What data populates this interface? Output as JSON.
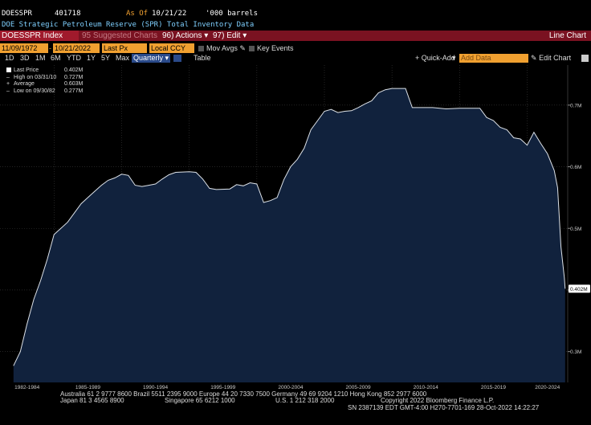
{
  "header": {
    "ticker": "DOESSPR",
    "last_value": "401718",
    "as_of_label": "As Of",
    "as_of_date": "10/21/22",
    "units": "'000 barrels",
    "description": "DOE Strategic Petroleum Reserve (SPR) Total Inventory Data"
  },
  "toolbar": {
    "security": "DOESSPR Index",
    "suggested": "95 Suggested Charts",
    "actions": "96) Actions",
    "edit": "97) Edit",
    "view": "Line Chart"
  },
  "controls": {
    "start_date": "11/09/1972",
    "end_date": "10/21/2022",
    "field": "Last Px",
    "currency": "Local CCY",
    "mov_avgs": "Mov Avgs",
    "key_events": "Key Events",
    "ranges": [
      "1D",
      "3D",
      "1M",
      "6M",
      "YTD",
      "1Y",
      "5Y",
      "Max"
    ],
    "frequency": "Quarterly",
    "table": "Table",
    "quick_add": "+ Quick-Add",
    "add_data_placeholder": "Add Data",
    "edit_chart": "Edit Chart"
  },
  "legend": [
    {
      "label": "Last Price",
      "value": "0.402M"
    },
    {
      "label": "High on 03/31/10",
      "value": "0.727M"
    },
    {
      "label": "Average",
      "value": "0.603M"
    },
    {
      "label": "Low on 09/30/82",
      "value": "0.277M"
    }
  ],
  "chart_data": {
    "type": "area",
    "series": [
      {
        "values": [
          [
            1982.0,
            0.277
          ],
          [
            1982.5,
            0.3
          ],
          [
            1983.0,
            0.345
          ],
          [
            1983.5,
            0.385
          ],
          [
            1984.0,
            0.415
          ],
          [
            1984.5,
            0.45
          ],
          [
            1985.0,
            0.49
          ],
          [
            1985.5,
            0.5
          ],
          [
            1986.0,
            0.51
          ],
          [
            1986.5,
            0.525
          ],
          [
            1987.0,
            0.54
          ],
          [
            1987.5,
            0.55
          ],
          [
            1988.0,
            0.56
          ],
          [
            1988.5,
            0.57
          ],
          [
            1989.0,
            0.578
          ],
          [
            1989.5,
            0.582
          ],
          [
            1990.0,
            0.588
          ],
          [
            1990.5,
            0.586
          ],
          [
            1991.0,
            0.57
          ],
          [
            1991.5,
            0.568
          ],
          [
            1992.0,
            0.57
          ],
          [
            1992.5,
            0.572
          ],
          [
            1993.0,
            0.58
          ],
          [
            1993.5,
            0.587
          ],
          [
            1994.0,
            0.591
          ],
          [
            1995.0,
            0.592
          ],
          [
            1995.5,
            0.591
          ],
          [
            1996.0,
            0.58
          ],
          [
            1996.5,
            0.565
          ],
          [
            1997.0,
            0.563
          ],
          [
            1998.0,
            0.564
          ],
          [
            1998.5,
            0.571
          ],
          [
            1999.0,
            0.569
          ],
          [
            1999.5,
            0.574
          ],
          [
            2000.0,
            0.572
          ],
          [
            2000.5,
            0.542
          ],
          [
            2001.0,
            0.545
          ],
          [
            2001.5,
            0.55
          ],
          [
            2002.0,
            0.579
          ],
          [
            2002.5,
            0.6
          ],
          [
            2003.0,
            0.612
          ],
          [
            2003.5,
            0.63
          ],
          [
            2004.0,
            0.66
          ],
          [
            2004.5,
            0.675
          ],
          [
            2005.0,
            0.69
          ],
          [
            2005.5,
            0.693
          ],
          [
            2006.0,
            0.688
          ],
          [
            2006.5,
            0.69
          ],
          [
            2007.0,
            0.691
          ],
          [
            2007.5,
            0.696
          ],
          [
            2008.0,
            0.702
          ],
          [
            2008.5,
            0.707
          ],
          [
            2009.0,
            0.72
          ],
          [
            2009.5,
            0.725
          ],
          [
            2010.0,
            0.727
          ],
          [
            2011.0,
            0.727
          ],
          [
            2011.5,
            0.696
          ],
          [
            2012.0,
            0.696
          ],
          [
            2013.0,
            0.696
          ],
          [
            2014.0,
            0.694
          ],
          [
            2015.0,
            0.695
          ],
          [
            2015.5,
            0.695
          ],
          [
            2016.0,
            0.695
          ],
          [
            2016.5,
            0.695
          ],
          [
            2017.0,
            0.68
          ],
          [
            2017.5,
            0.675
          ],
          [
            2018.0,
            0.664
          ],
          [
            2018.5,
            0.66
          ],
          [
            2019.0,
            0.647
          ],
          [
            2019.5,
            0.645
          ],
          [
            2020.0,
            0.635
          ],
          [
            2020.5,
            0.656
          ],
          [
            2021.0,
            0.638
          ],
          [
            2021.5,
            0.621
          ],
          [
            2022.0,
            0.594
          ],
          [
            2022.25,
            0.566
          ],
          [
            2022.5,
            0.47
          ],
          [
            2022.75,
            0.42
          ],
          [
            2022.81,
            0.402
          ]
        ]
      }
    ],
    "x_ticks": [
      "1982-1984",
      "1985-1989",
      "1990-1994",
      "1995-1999",
      "2000-2004",
      "2005-2009",
      "2010-2014",
      "2015-2019",
      "2020-2024"
    ],
    "y_ticks": [
      "0.3M",
      "0.4M",
      "0.5M",
      "0.6M",
      "0.7M"
    ],
    "last_value_label": "0.402M",
    "xlim": [
      1981.0,
      2023.0
    ],
    "ylim": [
      0.25,
      0.765
    ],
    "grid": true,
    "legend_position": "top-left",
    "colors": {
      "fill": "#11223d",
      "line": "#dde2e8",
      "grid": "#3a3a3a",
      "axis_text": "#cccccc"
    }
  },
  "footer": {
    "line1": "Australia 61 2 9777 8600 Brazil 5511 2395 9000 Europe 44 20 7330 7500 Germany 49 69 9204 1210 Hong Kong 852 2977 6000",
    "line2a": "Japan 81 3 4565 8900",
    "line2b": "Singapore 65 6212 1000",
    "line2c": "U.S. 1 212 318 2000",
    "line2d": "Copyright 2022 Bloomberg Finance L.P.",
    "line3": "SN 2387139 EDT  GMT-4:00 H270-7701-169 28-Oct-2022 14:22:27"
  }
}
